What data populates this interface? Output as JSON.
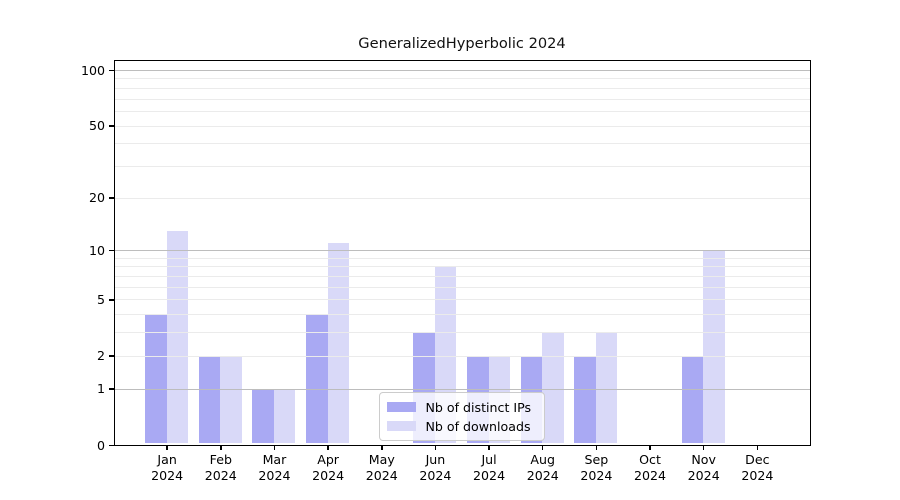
{
  "chart_data": {
    "type": "bar",
    "title": "GeneralizedHyperbolic 2024",
    "categories": [
      {
        "month": "Jan",
        "year": "2024"
      },
      {
        "month": "Feb",
        "year": "2024"
      },
      {
        "month": "Mar",
        "year": "2024"
      },
      {
        "month": "Apr",
        "year": "2024"
      },
      {
        "month": "May",
        "year": "2024"
      },
      {
        "month": "Jun",
        "year": "2024"
      },
      {
        "month": "Jul",
        "year": "2024"
      },
      {
        "month": "Aug",
        "year": "2024"
      },
      {
        "month": "Sep",
        "year": "2024"
      },
      {
        "month": "Oct",
        "year": "2024"
      },
      {
        "month": "Nov",
        "year": "2024"
      },
      {
        "month": "Dec",
        "year": "2024"
      }
    ],
    "series": [
      {
        "name": "Nb of distinct IPs",
        "color": "#a9a9f3",
        "values": [
          4,
          2,
          1,
          4,
          0,
          3,
          2,
          2,
          2,
          0,
          2,
          0
        ]
      },
      {
        "name": "Nb of downloads",
        "color": "#d9d9f8",
        "values": [
          13,
          2,
          1,
          11,
          0,
          8,
          2,
          3,
          3,
          0,
          10,
          0
        ]
      }
    ],
    "yaxis": {
      "scale": "log1p",
      "ticks": [
        0,
        1,
        2,
        5,
        10,
        20,
        50,
        100
      ],
      "major_gridlines": [
        1,
        10,
        100
      ],
      "minor_gridlines": [
        2,
        3,
        4,
        5,
        6,
        7,
        8,
        9,
        20,
        30,
        40,
        50,
        60,
        70,
        80,
        90
      ]
    },
    "xlabel": "",
    "ylabel": "",
    "grid": true,
    "legend_position": "lower center"
  }
}
